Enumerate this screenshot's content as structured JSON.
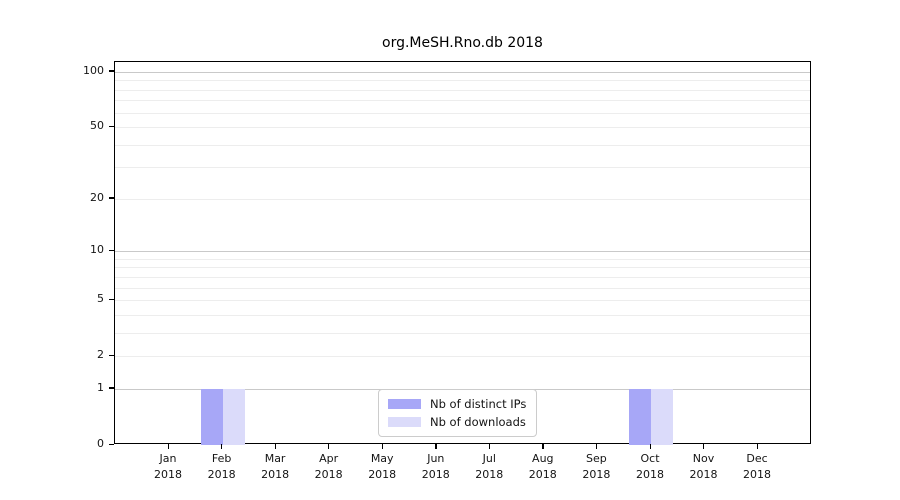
{
  "title": "org.MeSH.Rno.db 2018",
  "chart_data": {
    "type": "bar",
    "title": "org.MeSH.Rno.db 2018",
    "categories": [
      "Jan",
      "Feb",
      "Mar",
      "Apr",
      "May",
      "Jun",
      "Jul",
      "Aug",
      "Sep",
      "Oct",
      "Nov",
      "Dec"
    ],
    "x_tick_year": "2018",
    "series": [
      {
        "name": "Nb of distinct IPs",
        "color": "#a7a7f7",
        "values": [
          0,
          1,
          0,
          0,
          0,
          0,
          0,
          0,
          0,
          1,
          0,
          0
        ]
      },
      {
        "name": "Nb of downloads",
        "color": "#dbdbfa",
        "values": [
          0,
          1,
          0,
          0,
          0,
          0,
          0,
          0,
          0,
          1,
          0,
          0
        ]
      }
    ],
    "xlabel": "",
    "ylabel": "",
    "yscale": "log1p",
    "ylim": [
      0,
      113
    ],
    "yticks": [
      0,
      1,
      2,
      5,
      10,
      20,
      50,
      100
    ],
    "major_gridlines": [
      1,
      10,
      100
    ],
    "minor_gridlines": [
      2,
      3,
      4,
      5,
      6,
      7,
      8,
      9,
      20,
      30,
      40,
      50,
      60,
      70,
      80,
      90
    ],
    "grid": true,
    "legend_position": "lower center"
  },
  "legend": {
    "items": [
      {
        "label": "Nb of distinct IPs",
        "color": "#a7a7f7"
      },
      {
        "label": "Nb of downloads",
        "color": "#dbdbfa"
      }
    ]
  }
}
